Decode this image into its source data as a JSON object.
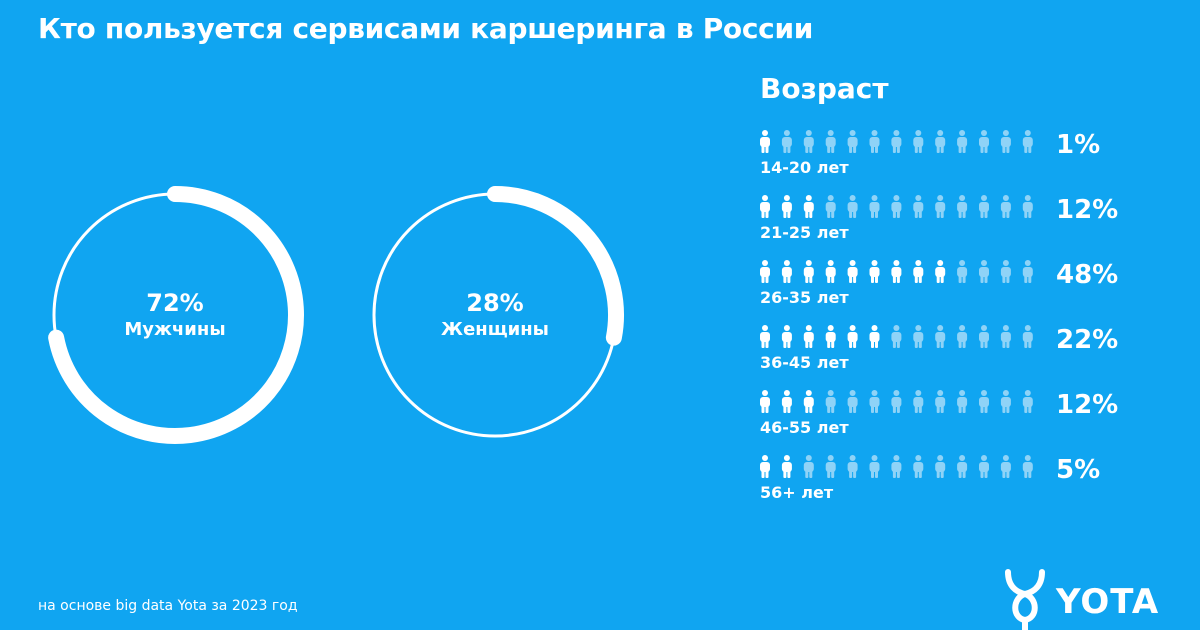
{
  "title": "Кто пользуется сервисами каршеринга в России",
  "footnote": "на основе big data Yota за 2023 год",
  "brand": "YOTA",
  "colors": {
    "background": "#10A5F1",
    "foreground": "#FFFFFF",
    "icon_inactive": "#8FD3F7"
  },
  "chart_data": [
    {
      "type": "pie",
      "subtype": "donut",
      "series": [
        {
          "name": "Мужчины",
          "value": 72,
          "value_label": "72%"
        },
        {
          "name": "Женщины",
          "value": 28,
          "value_label": "28%"
        }
      ]
    },
    {
      "type": "bar",
      "subtype": "pictogram",
      "title": "Возраст",
      "icons_per_row": 13,
      "categories": [
        "14-20 лет",
        "21-25 лет",
        "26-35 лет",
        "36-45 лет",
        "46-55 лет",
        "56+ лет"
      ],
      "values": [
        1,
        12,
        48,
        22,
        12,
        5
      ],
      "value_labels": [
        "1%",
        "12%",
        "48%",
        "22%",
        "12%",
        "5%"
      ],
      "filled_icons": [
        1,
        3,
        9,
        6,
        3,
        2
      ]
    }
  ]
}
